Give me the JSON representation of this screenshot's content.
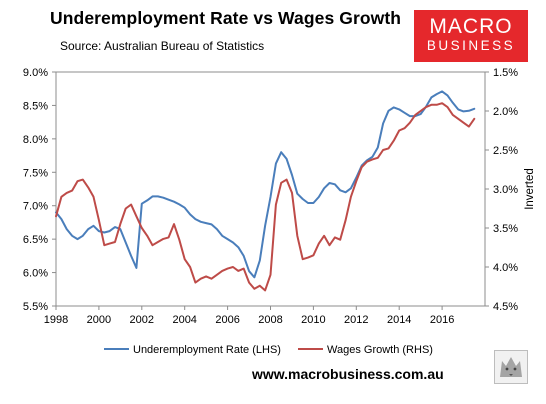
{
  "header": {
    "title": "Underemployment Rate vs Wages Growth",
    "source": "Source: Australian Bureau of Statistics"
  },
  "logo": {
    "line1": "MACRO",
    "line2": "BUSINESS"
  },
  "footer": {
    "url": "www.macrobusiness.com.au"
  },
  "colors": {
    "underemployment": "#4a7ebb",
    "wages": "#be4b48",
    "logo_bg": "#e5282c"
  },
  "chart_data": {
    "type": "line",
    "title": "Underemployment Rate vs Wages Growth",
    "xlabel": "",
    "ylabel_left": "",
    "ylabel_right": "Inverted",
    "xlim": [
      1998,
      2018
    ],
    "x_ticks": [
      "1998",
      "2000",
      "2002",
      "2004",
      "2006",
      "2008",
      "2010",
      "2012",
      "2014",
      "2016"
    ],
    "y_left": {
      "lim": [
        5.5,
        9.0
      ],
      "ticks": [
        "9.0%",
        "8.5%",
        "8.0%",
        "7.5%",
        "7.0%",
        "6.5%",
        "6.0%",
        "5.5%"
      ]
    },
    "y_right": {
      "lim": [
        1.5,
        4.5
      ],
      "inverted": true,
      "ticks": [
        "1.5%",
        "2.0%",
        "2.5%",
        "3.0%",
        "3.5%",
        "4.0%",
        "4.5%"
      ]
    },
    "grid": false,
    "legend": "bottom",
    "series": [
      {
        "name": "Underemployment Rate (LHS)",
        "axis": "left",
        "x": [
          1998.0,
          1998.25,
          1998.5,
          1998.75,
          1999.0,
          1999.25,
          1999.5,
          1999.75,
          2000.0,
          2000.25,
          2000.5,
          2000.75,
          2001.0,
          2001.25,
          2001.5,
          2001.75,
          2002.0,
          2002.25,
          2002.5,
          2002.75,
          2003.0,
          2003.25,
          2003.5,
          2003.75,
          2004.0,
          2004.25,
          2004.5,
          2004.75,
          2005.0,
          2005.25,
          2005.5,
          2005.75,
          2006.0,
          2006.25,
          2006.5,
          2006.75,
          2007.0,
          2007.25,
          2007.5,
          2007.75,
          2008.0,
          2008.25,
          2008.5,
          2008.75,
          2009.0,
          2009.25,
          2009.5,
          2009.75,
          2010.0,
          2010.25,
          2010.5,
          2010.75,
          2011.0,
          2011.25,
          2011.5,
          2011.75,
          2012.0,
          2012.25,
          2012.5,
          2012.75,
          2013.0,
          2013.25,
          2013.5,
          2013.75,
          2014.0,
          2014.25,
          2014.5,
          2014.75,
          2015.0,
          2015.25,
          2015.5,
          2015.75,
          2016.0,
          2016.25,
          2016.5,
          2016.75,
          2017.0,
          2017.25,
          2017.5
        ],
        "values": [
          6.9,
          6.8,
          6.65,
          6.55,
          6.5,
          6.55,
          6.65,
          6.7,
          6.62,
          6.6,
          6.62,
          6.68,
          6.65,
          6.45,
          6.25,
          6.07,
          7.03,
          7.08,
          7.14,
          7.14,
          7.12,
          7.09,
          7.06,
          7.02,
          6.97,
          6.87,
          6.8,
          6.76,
          6.74,
          6.72,
          6.65,
          6.55,
          6.5,
          6.45,
          6.38,
          6.25,
          6.02,
          5.93,
          6.18,
          6.7,
          7.13,
          7.63,
          7.8,
          7.7,
          7.46,
          7.18,
          7.1,
          7.04,
          7.04,
          7.13,
          7.26,
          7.34,
          7.32,
          7.23,
          7.2,
          7.26,
          7.42,
          7.6,
          7.68,
          7.73,
          7.87,
          8.23,
          8.42,
          8.47,
          8.44,
          8.39,
          8.34,
          8.34,
          8.37,
          8.48,
          8.62,
          8.67,
          8.71,
          8.65,
          8.54,
          8.44,
          8.41,
          8.42,
          8.45
        ]
      },
      {
        "name": "Wages Growth (RHS)",
        "axis": "right",
        "x": [
          1998.0,
          1998.25,
          1998.5,
          1998.75,
          1999.0,
          1999.25,
          1999.5,
          1999.75,
          2000.0,
          2000.25,
          2000.5,
          2000.75,
          2001.0,
          2001.25,
          2001.5,
          2001.75,
          2002.0,
          2002.25,
          2002.5,
          2002.75,
          2003.0,
          2003.25,
          2003.5,
          2003.75,
          2004.0,
          2004.25,
          2004.5,
          2004.75,
          2005.0,
          2005.25,
          2005.5,
          2005.75,
          2006.0,
          2006.25,
          2006.5,
          2006.75,
          2007.0,
          2007.25,
          2007.5,
          2007.75,
          2008.0,
          2008.25,
          2008.5,
          2008.75,
          2009.0,
          2009.25,
          2009.5,
          2009.75,
          2010.0,
          2010.25,
          2010.5,
          2010.75,
          2011.0,
          2011.25,
          2011.5,
          2011.75,
          2012.0,
          2012.25,
          2012.5,
          2012.75,
          2013.0,
          2013.25,
          2013.5,
          2013.75,
          2014.0,
          2014.25,
          2014.5,
          2014.75,
          2015.0,
          2015.25,
          2015.5,
          2015.75,
          2016.0,
          2016.25,
          2016.5,
          2016.75,
          2017.0,
          2017.25,
          2017.5
        ],
        "values": [
          3.35,
          3.1,
          3.05,
          3.02,
          2.9,
          2.88,
          2.98,
          3.1,
          3.4,
          3.72,
          3.7,
          3.68,
          3.45,
          3.25,
          3.2,
          3.35,
          3.5,
          3.6,
          3.72,
          3.68,
          3.64,
          3.62,
          3.45,
          3.65,
          3.9,
          4.0,
          4.2,
          4.15,
          4.12,
          4.15,
          4.1,
          4.05,
          4.02,
          4.0,
          4.05,
          4.02,
          4.2,
          4.28,
          4.24,
          4.3,
          4.1,
          3.2,
          2.92,
          2.88,
          3.05,
          3.6,
          3.9,
          3.88,
          3.85,
          3.7,
          3.6,
          3.72,
          3.62,
          3.65,
          3.4,
          3.1,
          2.9,
          2.72,
          2.65,
          2.62,
          2.6,
          2.5,
          2.48,
          2.38,
          2.25,
          2.22,
          2.15,
          2.05,
          2.0,
          1.95,
          1.92,
          1.92,
          1.9,
          1.95,
          2.05,
          2.1,
          2.15,
          2.2,
          2.1
        ]
      }
    ]
  }
}
